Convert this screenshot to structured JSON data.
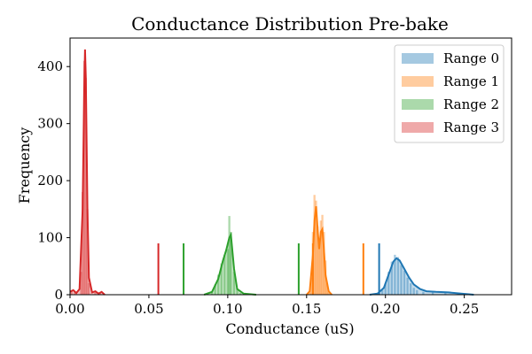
{
  "chart_data": {
    "type": "histogram",
    "title": "Conductance Distribution Pre-bake",
    "xlabel": "Conductance (uS)",
    "ylabel": "Frequency",
    "xlim": [
      0.0,
      0.28
    ],
    "ylim": [
      0,
      450
    ],
    "xticks": [
      0.0,
      0.05,
      0.1,
      0.15,
      0.2,
      0.25
    ],
    "xtick_labels": [
      "0.00",
      "0.05",
      "0.10",
      "0.15",
      "0.20",
      "0.25"
    ],
    "yticks": [
      0,
      100,
      200,
      300,
      400
    ],
    "ytick_labels": [
      "0",
      "100",
      "200",
      "300",
      "400"
    ],
    "legend_position": "top-right",
    "series": [
      {
        "name": "Range 0",
        "color": "#1f77b4",
        "hist_bins": [
          [
            0.196,
            2
          ],
          [
            0.198,
            8
          ],
          [
            0.2,
            20
          ],
          [
            0.202,
            40
          ],
          [
            0.204,
            58
          ],
          [
            0.206,
            70
          ],
          [
            0.208,
            66
          ],
          [
            0.21,
            52
          ],
          [
            0.212,
            42
          ],
          [
            0.214,
            30
          ],
          [
            0.216,
            20
          ],
          [
            0.218,
            12
          ],
          [
            0.22,
            8
          ],
          [
            0.224,
            5
          ],
          [
            0.23,
            4
          ],
          [
            0.238,
            3
          ],
          [
            0.246,
            2
          ],
          [
            0.252,
            1
          ]
        ],
        "kde": [
          [
            0.19,
            0
          ],
          [
            0.195,
            2
          ],
          [
            0.199,
            12
          ],
          [
            0.202,
            35
          ],
          [
            0.205,
            58
          ],
          [
            0.207,
            64
          ],
          [
            0.209,
            60
          ],
          [
            0.212,
            45
          ],
          [
            0.215,
            30
          ],
          [
            0.218,
            18
          ],
          [
            0.222,
            10
          ],
          [
            0.226,
            6
          ],
          [
            0.232,
            5
          ],
          [
            0.24,
            4
          ],
          [
            0.248,
            2
          ],
          [
            0.256,
            0
          ]
        ],
        "bound_lines": [
          0.196
        ],
        "bound_line_height": 90
      },
      {
        "name": "Range 1",
        "color": "#ff7f0e",
        "hist_bins": [
          [
            0.152,
            4
          ],
          [
            0.153,
            30
          ],
          [
            0.154,
            110
          ],
          [
            0.155,
            175
          ],
          [
            0.156,
            165
          ],
          [
            0.157,
            120
          ],
          [
            0.158,
            90
          ],
          [
            0.159,
            130
          ],
          [
            0.16,
            140
          ],
          [
            0.161,
            110
          ],
          [
            0.162,
            60
          ],
          [
            0.163,
            20
          ],
          [
            0.164,
            5
          ]
        ],
        "kde": [
          [
            0.15,
            0
          ],
          [
            0.152,
            6
          ],
          [
            0.154,
            70
          ],
          [
            0.155,
            130
          ],
          [
            0.156,
            155
          ],
          [
            0.157,
            115
          ],
          [
            0.158,
            80
          ],
          [
            0.159,
            110
          ],
          [
            0.16,
            115
          ],
          [
            0.161,
            80
          ],
          [
            0.162,
            35
          ],
          [
            0.164,
            6
          ],
          [
            0.166,
            0
          ]
        ],
        "bound_lines": [
          0.154,
          0.186
        ],
        "bound_line_height": 90
      },
      {
        "name": "Range 2",
        "color": "#2ca02c",
        "hist_bins": [
          [
            0.09,
            4
          ],
          [
            0.092,
            18
          ],
          [
            0.094,
            35
          ],
          [
            0.096,
            55
          ],
          [
            0.098,
            70
          ],
          [
            0.1,
            80
          ],
          [
            0.101,
            138
          ],
          [
            0.102,
            110
          ],
          [
            0.104,
            40
          ],
          [
            0.106,
            10
          ],
          [
            0.108,
            3
          ]
        ],
        "kde": [
          [
            0.085,
            0
          ],
          [
            0.09,
            5
          ],
          [
            0.094,
            28
          ],
          [
            0.097,
            60
          ],
          [
            0.099,
            78
          ],
          [
            0.101,
            100
          ],
          [
            0.102,
            105
          ],
          [
            0.104,
            45
          ],
          [
            0.106,
            10
          ],
          [
            0.11,
            2
          ],
          [
            0.118,
            0
          ]
        ],
        "bound_lines": [
          0.072,
          0.145
        ],
        "bound_line_height": 90
      },
      {
        "name": "Range 3",
        "color": "#d62728",
        "hist_bins": [
          [
            0.001,
            8
          ],
          [
            0.003,
            5
          ],
          [
            0.007,
            40
          ],
          [
            0.008,
            180
          ],
          [
            0.009,
            410
          ],
          [
            0.01,
            380
          ],
          [
            0.011,
            150
          ],
          [
            0.012,
            20
          ],
          [
            0.016,
            4
          ],
          [
            0.019,
            3
          ]
        ],
        "kde": [
          [
            0.0,
            5
          ],
          [
            0.002,
            8
          ],
          [
            0.004,
            3
          ],
          [
            0.006,
            10
          ],
          [
            0.008,
            150
          ],
          [
            0.009,
            360
          ],
          [
            0.0095,
            430
          ],
          [
            0.01,
            380
          ],
          [
            0.011,
            150
          ],
          [
            0.012,
            30
          ],
          [
            0.014,
            4
          ],
          [
            0.016,
            6
          ],
          [
            0.018,
            2
          ],
          [
            0.02,
            5
          ],
          [
            0.022,
            0
          ]
        ],
        "bound_lines": [
          0.056
        ],
        "bound_line_height": 90
      }
    ]
  }
}
